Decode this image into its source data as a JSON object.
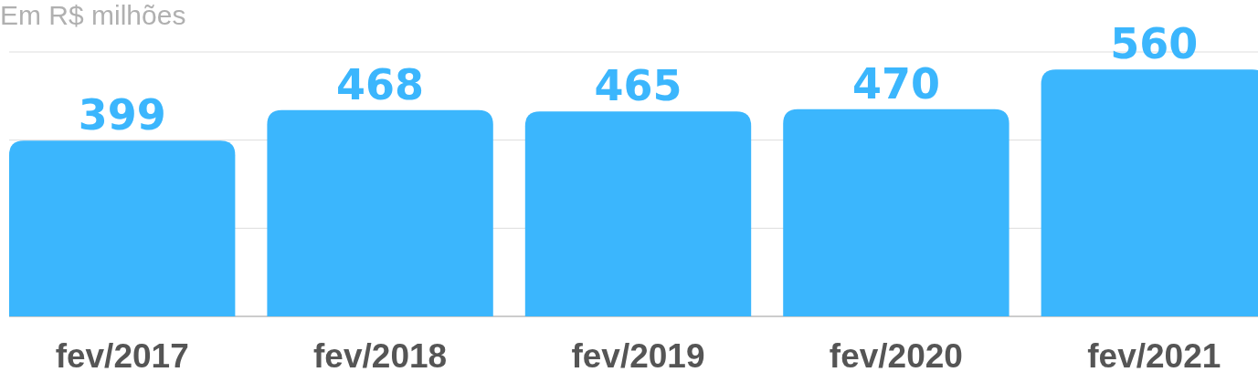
{
  "chart_data": {
    "type": "bar",
    "title": "Em R$ milhões",
    "categories": [
      "fev/2017",
      "fev/2018",
      "fev/2019",
      "fev/2020",
      "fev/2021"
    ],
    "values": [
      399,
      468,
      465,
      470,
      560
    ],
    "color": "#3bb6fd",
    "ylim": [
      0,
      600
    ],
    "yticks": [
      {
        "value": 0,
        "label": null
      },
      {
        "value": 200,
        "label": null
      },
      {
        "value": 400,
        "label": null
      },
      {
        "value": 600,
        "label": null
      }
    ],
    "grid": "y",
    "data_labels": true,
    "tick_labels": "x"
  }
}
